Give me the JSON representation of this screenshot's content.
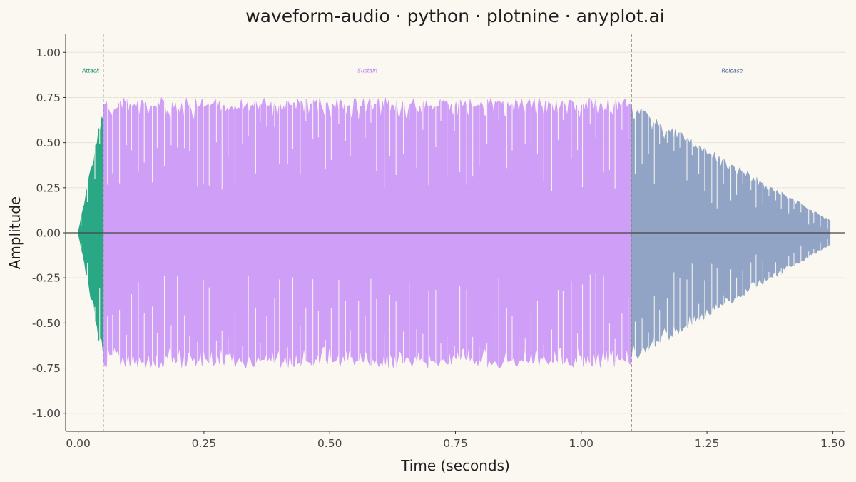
{
  "chart_data": {
    "type": "area",
    "title": "waveform-audio · python · plotnine · anyplot.ai",
    "xlabel": "Time (seconds)",
    "ylabel": "Amplitude",
    "xlim": [
      -0.025,
      1.525
    ],
    "ylim": [
      -1.1,
      1.1
    ],
    "x_ticks": [
      0.0,
      0.25,
      0.5,
      0.75,
      1.0,
      1.25,
      1.5
    ],
    "x_tick_labels": [
      "0.00",
      "0.25",
      "0.50",
      "0.75",
      "1.00",
      "1.25",
      "1.50"
    ],
    "y_ticks": [
      1.0,
      0.75,
      0.5,
      0.25,
      0.0,
      -0.25,
      -0.5,
      -0.75,
      -1.0
    ],
    "y_tick_labels": [
      "1.00",
      "0.75",
      "0.50",
      "0.25",
      "0.00",
      "-0.25",
      "-0.50",
      "-0.75",
      "-1.00"
    ],
    "grid": true,
    "boundaries_x": [
      0.05,
      1.1
    ],
    "series": [
      {
        "name": "Attack",
        "color": "#1FA37E",
        "x_start": 0.0,
        "x_end": 0.05,
        "envelope": "linear rise",
        "peak_amplitude_start": 0.0,
        "peak_amplitude_end": 0.74,
        "label_x": 0.025
      },
      {
        "name": "Sustain",
        "color": "#CC99F5",
        "x_start": 0.05,
        "x_end": 1.1,
        "envelope": "constant",
        "peak_amplitude_start": 0.75,
        "peak_amplitude_end": 0.75,
        "label_x": 0.575
      },
      {
        "name": "Release",
        "color": "#8B9FC2",
        "x_start": 1.1,
        "x_end": 1.495,
        "envelope": "linear decay",
        "peak_amplitude_start": 0.72,
        "peak_amplitude_end": 0.07,
        "label_x": 1.3
      }
    ],
    "segment_label_y": 0.9,
    "segment_label_colors": {
      "Attack": "#1B8F6C",
      "Sustain": "#B57BE8",
      "Release": "#3F5F8F"
    }
  }
}
